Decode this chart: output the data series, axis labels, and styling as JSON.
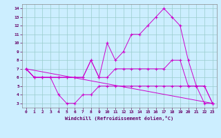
{
  "xlabel": "Windchill (Refroidissement éolien,°C)",
  "xlim": [
    -0.5,
    23.5
  ],
  "ylim": [
    2.5,
    14.5
  ],
  "xticks": [
    0,
    1,
    2,
    3,
    4,
    5,
    6,
    7,
    8,
    9,
    10,
    11,
    12,
    13,
    14,
    15,
    16,
    17,
    18,
    19,
    20,
    21,
    22,
    23
  ],
  "yticks": [
    3,
    4,
    5,
    6,
    7,
    8,
    9,
    10,
    11,
    12,
    13,
    14
  ],
  "bg_color": "#cceeff",
  "line_color": "#cc00cc",
  "grid_color": "#99cccc",
  "line1_x": [
    0,
    1,
    2,
    3,
    4,
    5,
    6,
    7,
    8,
    9,
    10,
    11,
    12,
    13,
    14,
    15,
    16,
    17,
    18,
    19,
    20,
    21,
    22,
    23
  ],
  "line1_y": [
    7,
    6,
    6,
    6,
    4,
    3,
    3,
    4,
    4,
    5,
    5,
    5,
    5,
    5,
    5,
    5,
    5,
    5,
    5,
    5,
    5,
    5,
    3,
    3
  ],
  "line2_x": [
    0,
    1,
    2,
    3,
    4,
    5,
    6,
    7,
    8,
    9,
    10,
    11,
    12,
    13,
    14,
    15,
    16,
    17,
    18,
    19,
    20,
    21,
    22,
    23
  ],
  "line2_y": [
    7,
    6,
    6,
    6,
    6,
    6,
    6,
    6,
    8,
    6,
    6,
    7,
    7,
    7,
    7,
    7,
    7,
    7,
    8,
    8,
    5,
    5,
    5,
    3
  ],
  "line3_x": [
    0,
    1,
    2,
    3,
    4,
    5,
    6,
    7,
    8,
    9,
    10,
    11,
    12,
    13,
    14,
    15,
    16,
    17,
    18,
    19,
    20,
    21,
    22,
    23
  ],
  "line3_y": [
    7,
    6,
    6,
    6,
    6,
    6,
    6,
    6,
    8,
    6,
    10,
    8,
    9,
    11,
    11,
    12,
    13,
    14,
    13,
    12,
    8,
    5,
    5,
    3
  ],
  "line4_x": [
    0,
    23
  ],
  "line4_y": [
    7,
    3
  ],
  "line5_x": [
    0,
    1,
    2,
    3,
    4,
    5,
    6,
    7
  ],
  "line5_y": [
    7,
    6,
    6,
    6,
    6,
    6,
    6,
    6
  ]
}
